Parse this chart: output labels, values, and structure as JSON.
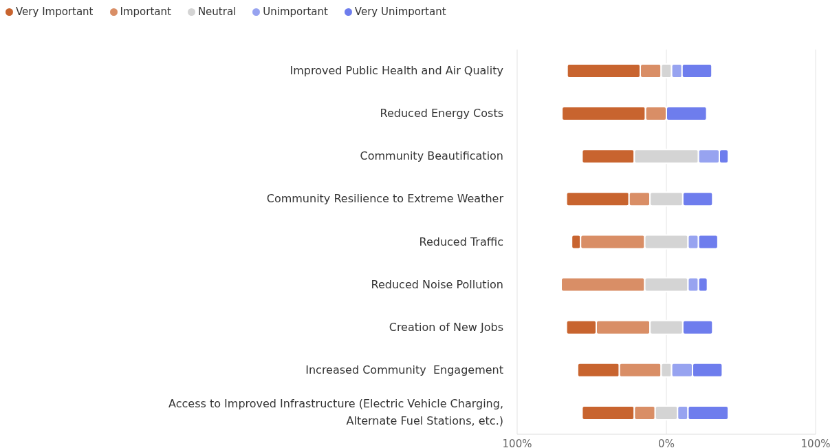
{
  "chart_data": {
    "type": "bar",
    "orientation": "horizontal",
    "categories": [
      "Improved Public Health and Air Quality",
      "Reduced Energy Costs",
      "Community Beautification",
      "Community Resilience to Extreme Weather",
      "Reduced Traffic",
      "Reduced Noise Pollution",
      "Creation of New Jobs",
      "Increased Community  Engagement",
      "Access to Improved Infrastructure (Electric Vehicle Charging, Alternate Fuel Stations, etc.)"
    ],
    "series": [
      {
        "name": "Very Important",
        "color": "#c8642f",
        "values": [
          49,
          56,
          35,
          42,
          6,
          null,
          20,
          28,
          35
        ],
        "base": [
          -66.5,
          -70,
          -56.5,
          -67,
          -63.5,
          null,
          -67,
          -59.5,
          -56.5
        ]
      },
      {
        "name": "Important",
        "color": "#d98e66",
        "values": [
          14,
          14,
          null,
          14,
          43,
          56,
          36,
          28,
          14
        ],
        "base": [
          -17.5,
          -14,
          null,
          -25,
          -57.5,
          -70.5,
          -47,
          -31.5,
          -21.5
        ]
      },
      {
        "name": "Neutral",
        "color": "#d4d4d4",
        "values": [
          7,
          null,
          43,
          22,
          29,
          29,
          22,
          7,
          15
        ],
        "base": [
          -3.5,
          null,
          -21.5,
          -11,
          -14.5,
          -14.5,
          -11,
          -3.5,
          -7.5
        ]
      },
      {
        "name": "Unimportant",
        "color": "#97a3f0",
        "values": [
          7,
          null,
          14,
          null,
          7,
          7,
          null,
          14,
          7
        ],
        "base": [
          3.5,
          null,
          21.5,
          null,
          14.5,
          14.5,
          null,
          3.5,
          7.5
        ]
      },
      {
        "name": "Very Unimportant",
        "color": "#6e7ded",
        "values": [
          20,
          27,
          6,
          20,
          13,
          6,
          20,
          20,
          27
        ],
        "base": [
          10.5,
          0,
          35.5,
          11,
          21.5,
          21.5,
          11,
          17.5,
          14.5
        ]
      }
    ],
    "xlim": [
      -100,
      100
    ],
    "xticks": [
      {
        "value": -100,
        "label": "100%"
      },
      {
        "value": 0,
        "label": "0%"
      },
      {
        "value": 100,
        "label": "100%"
      }
    ],
    "grid": "x",
    "legend": "top left"
  }
}
